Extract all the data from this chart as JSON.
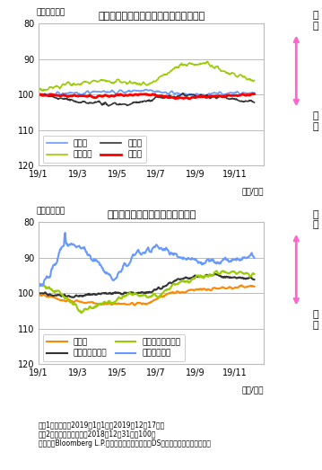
{
  "title1": "【主な先進国・地域通貨の対円レート】",
  "title2": "【主な新興国通貨の対円レート】",
  "ylabel_unit": "（ポイント）",
  "xlabel_label": "（年/月）",
  "ylim": [
    80,
    120
  ],
  "yticks": [
    80,
    90,
    100,
    110,
    120
  ],
  "xtick_labels": [
    "19/1",
    "19/3",
    "19/5",
    "19/7",
    "19/9",
    "19/11"
  ],
  "note1": "（注1）データは2019年1月1日～2019年12月17日。",
  "note2": "（注2）グラフは逆目盛。2018年12月31日＝100。",
  "note3": "（出所）Bloomberg L.P.のデータを基に三井住友DSアセットマネジメント作成",
  "arrow_label_top": "円\n高",
  "arrow_label_bottom": "円\n安",
  "legend1": [
    {
      "label": "ユーロ",
      "color": "#6699ff",
      "lw": 1.2
    },
    {
      "label": "英ポンド",
      "color": "#99cc00",
      "lw": 1.2
    },
    {
      "label": "豪ドル",
      "color": "#333333",
      "lw": 1.2
    },
    {
      "label": "米ドル",
      "color": "#ff0000",
      "lw": 2.0
    }
  ],
  "legend2": [
    {
      "label": "人民元",
      "color": "#ff8800",
      "lw": 1.5
    },
    {
      "label": "インド・ルピー",
      "color": "#333333",
      "lw": 1.5
    },
    {
      "label": "ブラジル・レアル",
      "color": "#99cc00",
      "lw": 1.5
    },
    {
      "label": "トルコ・リラ",
      "color": "#6699ff",
      "lw": 1.5
    }
  ],
  "background_color": "#ffffff",
  "grid_color": "#bbbbbb",
  "arrow_color": "#ff66cc"
}
